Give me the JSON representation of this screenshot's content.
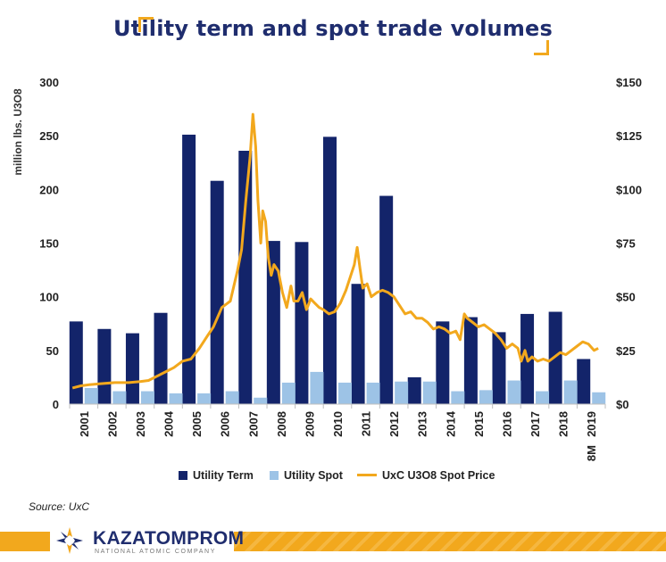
{
  "title": "Utility term and spot trade volumes",
  "source": "Source: UxC",
  "logo": {
    "name": "KAZATOMPROM",
    "subtitle": "NATIONAL ATOMIC COMPANY"
  },
  "colors": {
    "term": "#13246a",
    "spot": "#9dc3e6",
    "price": "#f2a81d",
    "title": "#1f2d6e"
  },
  "chart_data": {
    "type": "bar",
    "categories": [
      "2001",
      "2002",
      "2003",
      "2004",
      "2005",
      "2006",
      "2007",
      "2008",
      "2009",
      "2010",
      "2011",
      "2012",
      "2013",
      "2014",
      "2015",
      "2016",
      "2017",
      "2018",
      "2019"
    ],
    "category_labels": [
      "2001",
      "2002",
      "2003",
      "2004",
      "2005",
      "2006",
      "2007",
      "2008",
      "2009",
      "2010",
      "2011",
      "2012",
      "2013",
      "2014",
      "2015",
      "2016",
      "2017",
      "2018",
      "8M 2019"
    ],
    "series": [
      {
        "name": "Utility Term",
        "values": [
          77,
          70,
          66,
          85,
          251,
          208,
          236,
          152,
          151,
          249,
          112,
          194,
          25,
          77,
          81,
          67,
          84,
          86,
          42
        ]
      },
      {
        "name": "Utility Spot",
        "values": [
          15,
          12,
          12,
          10,
          10,
          12,
          6,
          20,
          30,
          20,
          20,
          21,
          21,
          12,
          13,
          22,
          12,
          22,
          11
        ]
      }
    ],
    "line_series": {
      "name": "UxC U3O8 Spot Price",
      "x": [
        2001.0,
        2001.3,
        2001.6,
        2002.0,
        2002.5,
        2003.0,
        2003.4,
        2003.7,
        2004.0,
        2004.3,
        2004.6,
        2004.9,
        2005.2,
        2005.5,
        2005.8,
        2006.0,
        2006.3,
        2006.6,
        2006.85,
        2007.0,
        2007.15,
        2007.3,
        2007.4,
        2007.5,
        2007.58,
        2007.68,
        2007.75,
        2007.85,
        2007.95,
        2008.05,
        2008.15,
        2008.3,
        2008.45,
        2008.6,
        2008.75,
        2008.85,
        2009.0,
        2009.15,
        2009.3,
        2009.45,
        2009.6,
        2009.75,
        2009.9,
        2010.1,
        2010.3,
        2010.5,
        2010.7,
        2010.85,
        2011.0,
        2011.1,
        2011.2,
        2011.3,
        2011.45,
        2011.6,
        2011.8,
        2012.0,
        2012.2,
        2012.4,
        2012.6,
        2012.8,
        2013.0,
        2013.2,
        2013.4,
        2013.6,
        2013.8,
        2014.0,
        2014.2,
        2014.4,
        2014.6,
        2014.75,
        2014.9,
        2015.0,
        2015.2,
        2015.4,
        2015.6,
        2015.8,
        2016.0,
        2016.2,
        2016.4,
        2016.6,
        2016.8,
        2016.92,
        2017.05,
        2017.15,
        2017.3,
        2017.5,
        2017.7,
        2017.9,
        2018.1,
        2018.3,
        2018.5,
        2018.7,
        2018.9,
        2019.1,
        2019.3,
        2019.5,
        2019.65
      ],
      "y": [
        7.5,
        8.5,
        9,
        9.5,
        10,
        10,
        10.5,
        11,
        13,
        15,
        17,
        20,
        21,
        26,
        32,
        36,
        45,
        48,
        62,
        72,
        95,
        115,
        135,
        120,
        95,
        75,
        90,
        85,
        68,
        60,
        65,
        62,
        52,
        45,
        55,
        48,
        48,
        52,
        44,
        49,
        47,
        45,
        44,
        42,
        43,
        47,
        53,
        59,
        65,
        73,
        63,
        54,
        56,
        50,
        52,
        53,
        52,
        50,
        46,
        42,
        43,
        40,
        40,
        38,
        35,
        36,
        35,
        33,
        34,
        30,
        42,
        40,
        38,
        36,
        37,
        35,
        33,
        30,
        26,
        28,
        26,
        20,
        25,
        20,
        22,
        20,
        21,
        20,
        22,
        24,
        23,
        25,
        27,
        29,
        28,
        25,
        26
      ],
      "y_label_axis": "right"
    },
    "ylabel": "million lbs. U3O8",
    "ylim": [
      0,
      300
    ],
    "yticks": [
      0,
      50,
      100,
      150,
      200,
      250,
      300
    ],
    "y2lim": [
      0,
      150
    ],
    "y2ticks": [
      "$0",
      "$25",
      "$50",
      "$75",
      "$100",
      "$125",
      "$150"
    ],
    "legend": {
      "placement": "bottom",
      "entries": [
        "Utility Term",
        "Utility Spot",
        "UxC U3O8 Spot Price"
      ]
    },
    "grid": false
  }
}
